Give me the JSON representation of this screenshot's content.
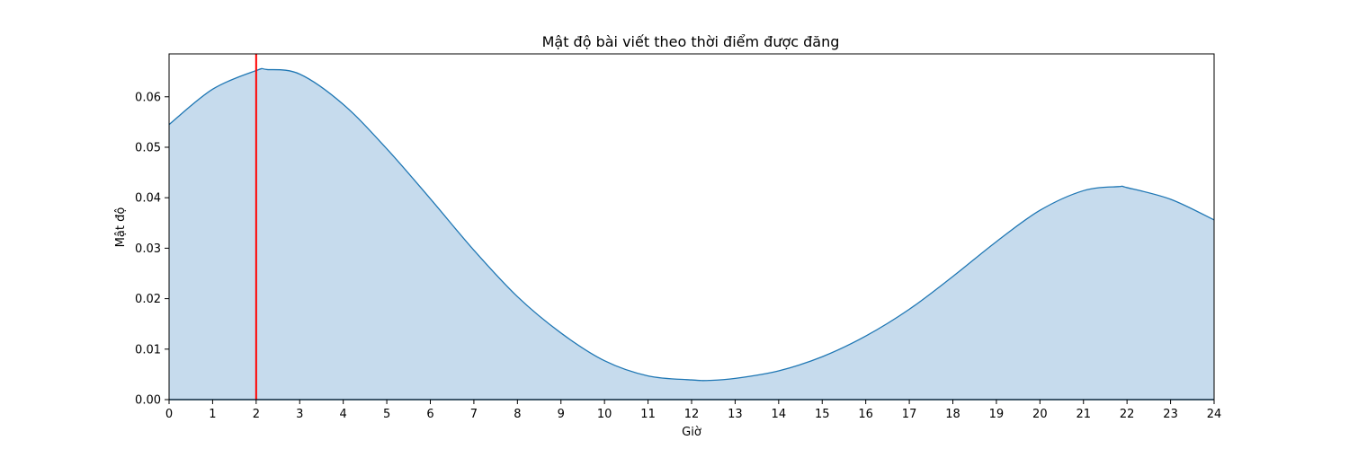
{
  "chart_data": {
    "type": "area",
    "title": "Mật độ bài viết theo thời điểm được đăng",
    "xlabel": "Giờ",
    "ylabel": "Mật độ",
    "xlim": [
      0,
      24
    ],
    "ylim": [
      0,
      0.0685
    ],
    "x_ticks": [
      0,
      1,
      2,
      3,
      4,
      5,
      6,
      7,
      8,
      9,
      10,
      11,
      12,
      13,
      14,
      15,
      16,
      17,
      18,
      19,
      20,
      21,
      22,
      23,
      24
    ],
    "y_ticks": [
      0.0,
      0.01,
      0.02,
      0.03,
      0.04,
      0.05,
      0.06
    ],
    "y_tick_labels": [
      "0.00",
      "0.01",
      "0.02",
      "0.03",
      "0.04",
      "0.05",
      "0.06"
    ],
    "grid": false,
    "series": [
      {
        "x": [
          0,
          1,
          2,
          2.25,
          3,
          4,
          5,
          6,
          7,
          8,
          9,
          10,
          11,
          12,
          12.4,
          13,
          14,
          15,
          16,
          17,
          18,
          19,
          20,
          21,
          21.8,
          22,
          23,
          24
        ],
        "y": [
          0.0545,
          0.0615,
          0.0652,
          0.0654,
          0.0645,
          0.0585,
          0.0497,
          0.0398,
          0.0296,
          0.0204,
          0.0132,
          0.0077,
          0.0047,
          0.0039,
          0.0038,
          0.0042,
          0.0057,
          0.0085,
          0.0126,
          0.0179,
          0.0244,
          0.0313,
          0.0375,
          0.0414,
          0.0422,
          0.042,
          0.0397,
          0.0356
        ],
        "line_color": "#1f77b4",
        "fill_color": "#c6dbed"
      }
    ],
    "vline": {
      "x": 2,
      "color": "#ff0000"
    }
  }
}
